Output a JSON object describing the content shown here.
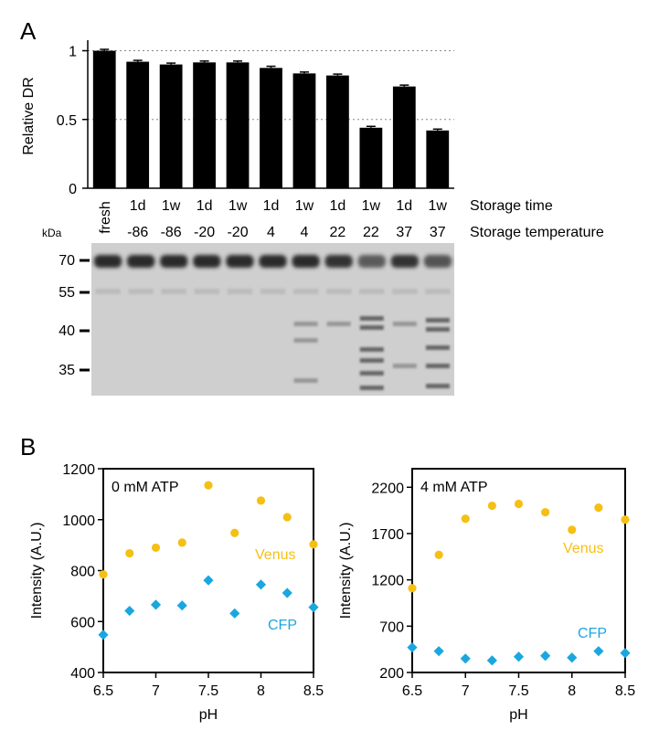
{
  "panels": {
    "a_label": "A",
    "b_label": "B"
  },
  "chart_data": [
    {
      "type": "bar",
      "panel": "A",
      "ylabel": "Relative DR",
      "ylim": [
        0,
        1.05
      ],
      "yticks": [
        0,
        0.5,
        1
      ],
      "ytick_labels": [
        "0",
        "0.5",
        "1"
      ],
      "grid_lines_at": [
        0.5,
        1
      ],
      "categories": [
        {
          "time": "fresh",
          "temperature": ""
        },
        {
          "time": "1d",
          "temperature": "-86"
        },
        {
          "time": "1w",
          "temperature": "-86"
        },
        {
          "time": "1d",
          "temperature": "-20"
        },
        {
          "time": "1w",
          "temperature": "-20"
        },
        {
          "time": "1d",
          "temperature": "4"
        },
        {
          "time": "1w",
          "temperature": "4"
        },
        {
          "time": "1d",
          "temperature": "22"
        },
        {
          "time": "1w",
          "temperature": "22"
        },
        {
          "time": "1d",
          "temperature": "37"
        },
        {
          "time": "1w",
          "temperature": "37"
        }
      ],
      "values": [
        1.0,
        0.92,
        0.9,
        0.915,
        0.915,
        0.875,
        0.835,
        0.82,
        0.44,
        0.74,
        0.42
      ],
      "errors": [
        0.01,
        0.01,
        0.01,
        0.01,
        0.01,
        0.012,
        0.01,
        0.01,
        0.01,
        0.01,
        0.01
      ],
      "row_labels": [
        "Storage time",
        "Storage temperature"
      ],
      "bar_color": "#000000"
    },
    {
      "type": "gel",
      "panel": "A",
      "unit_label": "kDa",
      "markers": [
        "70",
        "55",
        "40",
        "35"
      ],
      "lanes": 11
    },
    {
      "type": "scatter",
      "panel": "B-left",
      "annotation": "0 mM ATP",
      "xlabel": "pH",
      "ylabel": "Intensity (A.U.)",
      "xlim": [
        6.5,
        8.5
      ],
      "ylim": [
        400,
        1200
      ],
      "xticks": [
        6.5,
        7,
        7.5,
        8,
        8.5
      ],
      "xtick_labels": [
        "6.5",
        "7",
        "7.5",
        "8",
        "8.5"
      ],
      "yticks": [
        400,
        600,
        800,
        1000,
        1200
      ],
      "ytick_labels": [
        "400",
        "600",
        "800",
        "1000",
        "1200"
      ],
      "x": [
        6.5,
        6.75,
        7.0,
        7.25,
        7.5,
        7.75,
        8.0,
        8.25,
        8.5
      ],
      "series": [
        {
          "name": "Venus",
          "marker": "circle",
          "color": "#F5C013",
          "values": [
            785,
            868,
            890,
            910,
            1135,
            948,
            1075,
            1010,
            903
          ]
        },
        {
          "name": "CFP",
          "marker": "diamond",
          "color": "#1AA7E0",
          "values": [
            548,
            642,
            666,
            663,
            762,
            632,
            745,
            712,
            656
          ]
        }
      ]
    },
    {
      "type": "scatter",
      "panel": "B-right",
      "annotation": "4 mM ATP",
      "xlabel": "pH",
      "ylabel": "Intensity (A.U.)",
      "xlim": [
        6.5,
        8.5
      ],
      "ylim": [
        200,
        2400
      ],
      "xticks": [
        6.5,
        7,
        7.5,
        8,
        8.5
      ],
      "xtick_labels": [
        "6.5",
        "7",
        "7.5",
        "8",
        "8.5"
      ],
      "yticks": [
        200,
        700,
        1200,
        1700,
        2200
      ],
      "ytick_labels": [
        "200",
        "700",
        "1200",
        "1700",
        "2200"
      ],
      "x": [
        6.5,
        6.75,
        7.0,
        7.25,
        7.5,
        7.75,
        8.0,
        8.25,
        8.5
      ],
      "series": [
        {
          "name": "Venus",
          "marker": "circle",
          "color": "#F5C013",
          "values": [
            1110,
            1470,
            1860,
            2000,
            2020,
            1930,
            1740,
            1980,
            1850
          ]
        },
        {
          "name": "CFP",
          "marker": "diamond",
          "color": "#1AA7E0",
          "values": [
            470,
            430,
            350,
            330,
            370,
            380,
            360,
            430,
            410
          ]
        }
      ]
    }
  ]
}
